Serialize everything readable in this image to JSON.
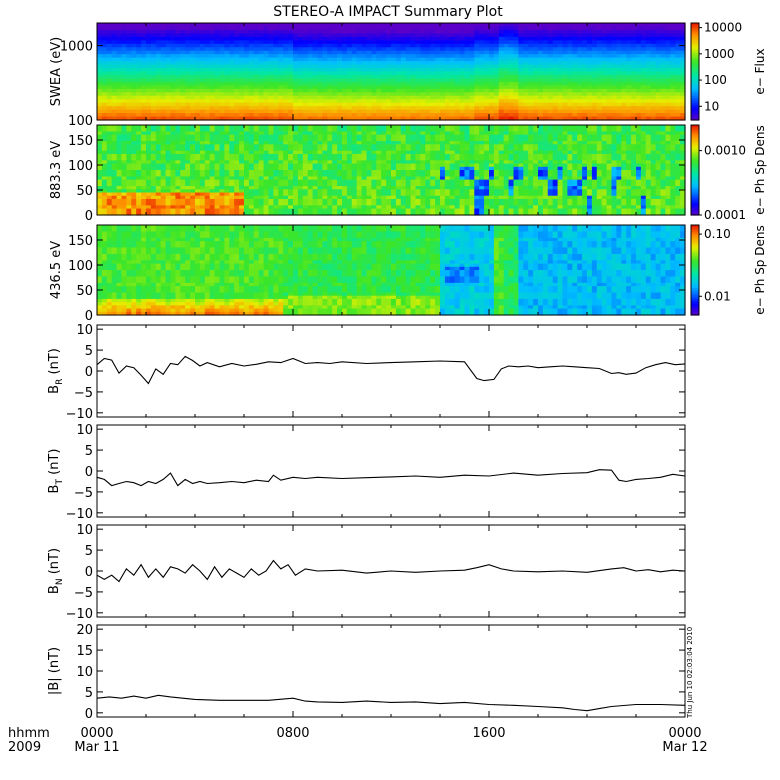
{
  "title": "STEREO-A IMPACT Summary Plot",
  "stamp": "Thu Jun 10 02:03:04 2010",
  "time_axis": {
    "unit_label": "hhmm",
    "year_label": "2009",
    "ticks": [
      {
        "t": 0,
        "top": "0000",
        "bottom": "Mar 11"
      },
      {
        "t": 8,
        "top": "0800",
        "bottom": ""
      },
      {
        "t": 16,
        "top": "1600",
        "bottom": ""
      },
      {
        "t": 24,
        "top": "0000",
        "bottom": "Mar 12"
      }
    ],
    "range_hours": [
      0,
      24
    ]
  },
  "chart_data": [
    {
      "type": "heatmap",
      "id": "swea",
      "ylabel": "SWEA (eV)",
      "yscale": "log",
      "ylim": [
        100,
        2000
      ],
      "yticks": [
        {
          "v": 100,
          "label": "100"
        },
        {
          "v": 1000,
          "label": "1000"
        }
      ],
      "colorbar": {
        "label": "e− Flux",
        "scale": "log",
        "range": [
          3,
          15000
        ],
        "ticks": [
          {
            "v": 10000,
            "label": "10000"
          },
          {
            "v": 1000,
            "label": "1000"
          },
          {
            "v": 100,
            "label": "100"
          },
          {
            "v": 10,
            "label": "10"
          }
        ]
      },
      "description_values": {
        "flux_at_100eV": 8000,
        "flux_at_300eV": 2000,
        "flux_at_1000eV": 100,
        "flux_at_2000eV": 5
      }
    },
    {
      "type": "heatmap",
      "id": "pad883",
      "ylabel": "883.3 eV",
      "ylim": [
        0,
        180
      ],
      "yticks": [
        {
          "v": 0,
          "label": "0"
        },
        {
          "v": 50,
          "label": "50"
        },
        {
          "v": 100,
          "label": "100"
        },
        {
          "v": 150,
          "label": "150"
        }
      ],
      "colorbar": {
        "label": "e− Ph Sp Dens",
        "scale": "log",
        "range": [
          0.0001,
          0.0025
        ],
        "ticks": [
          {
            "v": 0.001,
            "label": "0.0010"
          },
          {
            "v": 0.0001,
            "label": "0.0001"
          }
        ]
      }
    },
    {
      "type": "heatmap",
      "id": "pad436",
      "ylabel": "436.5 eV",
      "ylim": [
        0,
        180
      ],
      "yticks": [
        {
          "v": 0,
          "label": "0"
        },
        {
          "v": 50,
          "label": "50"
        },
        {
          "v": 100,
          "label": "100"
        },
        {
          "v": 150,
          "label": "150"
        }
      ],
      "colorbar": {
        "label": "e− Ph Sp Dens",
        "scale": "log",
        "range": [
          0.005,
          0.14
        ],
        "ticks": [
          {
            "v": 0.1,
            "label": "0.10"
          },
          {
            "v": 0.01,
            "label": "0.01"
          }
        ]
      }
    },
    {
      "type": "line",
      "id": "br",
      "ylabel_main": "B",
      "ylabel_sub": "R",
      "ylabel_unit": " (nT)",
      "ylim": [
        -11,
        11
      ],
      "yticks": [
        {
          "v": 10,
          "label": "10"
        },
        {
          "v": 5,
          "label": "5"
        },
        {
          "v": 0,
          "label": "0"
        },
        {
          "v": -5,
          "label": "−5"
        },
        {
          "v": -10,
          "label": "−10"
        }
      ],
      "x": [
        0,
        0.3,
        0.6,
        0.9,
        1.2,
        1.5,
        1.8,
        2.1,
        2.4,
        2.7,
        3.0,
        3.3,
        3.6,
        3.9,
        4.2,
        4.5,
        5,
        5.5,
        6,
        6.5,
        7,
        7.5,
        8,
        8.5,
        9,
        9.5,
        10,
        11,
        12,
        13,
        14,
        15,
        15.5,
        15.8,
        16.2,
        16.5,
        16.8,
        17.2,
        17.6,
        18,
        18.5,
        19,
        19.5,
        20,
        20.5,
        21,
        21.3,
        21.6,
        22,
        22.4,
        22.8,
        23.2,
        23.6,
        24
      ],
      "y": [
        1.5,
        3.0,
        2.6,
        -0.5,
        1.2,
        0.8,
        -1.0,
        -3.0,
        0.5,
        -0.8,
        1.8,
        1.5,
        3.5,
        2.5,
        1.2,
        2.0,
        1.0,
        1.8,
        1.2,
        1.6,
        2.2,
        2.0,
        3.0,
        1.8,
        2.0,
        1.8,
        2.2,
        1.8,
        2.0,
        2.2,
        2.4,
        2.2,
        -1.8,
        -2.3,
        -2.0,
        0.5,
        1.2,
        1.0,
        1.2,
        0.8,
        1.0,
        1.2,
        1.0,
        0.8,
        0.6,
        -0.6,
        -0.4,
        -0.8,
        -0.5,
        0.8,
        1.5,
        2.0,
        1.5,
        1.7
      ]
    },
    {
      "type": "line",
      "id": "bt",
      "ylabel_main": "B",
      "ylabel_sub": "T",
      "ylabel_unit": " (nT)",
      "ylim": [
        -11,
        11
      ],
      "yticks": [
        {
          "v": 10,
          "label": "10"
        },
        {
          "v": 5,
          "label": "5"
        },
        {
          "v": 0,
          "label": "0"
        },
        {
          "v": -5,
          "label": "−5"
        },
        {
          "v": -10,
          "label": "−10"
        }
      ],
      "x": [
        0,
        0.3,
        0.6,
        0.9,
        1.2,
        1.5,
        1.8,
        2.1,
        2.4,
        2.7,
        3.0,
        3.3,
        3.6,
        3.9,
        4.2,
        4.5,
        5,
        5.5,
        6,
        6.5,
        7,
        7.2,
        7.5,
        8,
        8.5,
        9,
        10,
        11,
        12,
        13,
        14,
        15,
        16,
        17,
        18,
        19,
        20,
        20.5,
        21,
        21.3,
        21.6,
        22,
        22.5,
        23,
        23.5,
        24
      ],
      "y": [
        -1.5,
        -2.0,
        -3.5,
        -3.0,
        -2.5,
        -2.8,
        -3.5,
        -2.5,
        -3.0,
        -2.0,
        -0.5,
        -3.5,
        -2.0,
        -3.0,
        -2.5,
        -3.0,
        -2.8,
        -2.5,
        -2.8,
        -2.2,
        -2.5,
        -1.0,
        -2.2,
        -1.5,
        -1.8,
        -1.5,
        -1.8,
        -1.6,
        -1.4,
        -1.2,
        -1.5,
        -1.0,
        -1.2,
        -0.5,
        -1.0,
        -0.6,
        -0.4,
        0.3,
        0.2,
        -2.2,
        -2.5,
        -2.0,
        -1.8,
        -1.5,
        -0.8,
        -1.2
      ]
    },
    {
      "type": "line",
      "id": "bn",
      "ylabel_main": "B",
      "ylabel_sub": "N",
      "ylabel_unit": " (nT)",
      "ylim": [
        -11,
        11
      ],
      "yticks": [
        {
          "v": 10,
          "label": "10"
        },
        {
          "v": 5,
          "label": "5"
        },
        {
          "v": 0,
          "label": "0"
        },
        {
          "v": -5,
          "label": "−5"
        },
        {
          "v": -10,
          "label": "−10"
        }
      ],
      "x": [
        0,
        0.3,
        0.6,
        0.9,
        1.2,
        1.5,
        1.8,
        2.1,
        2.4,
        2.7,
        3.0,
        3.3,
        3.6,
        3.9,
        4.2,
        4.5,
        4.8,
        5.1,
        5.4,
        5.7,
        6,
        6.3,
        6.6,
        6.9,
        7.2,
        7.5,
        7.8,
        8.1,
        8.5,
        9,
        10,
        11,
        12,
        13,
        14,
        15,
        15.5,
        16,
        16.5,
        17,
        18,
        19,
        20,
        21,
        21.5,
        22,
        22.5,
        23,
        23.5,
        24
      ],
      "y": [
        -1.0,
        -2.0,
        -1.0,
        -2.5,
        0.5,
        -1.0,
        1.5,
        -1.5,
        0.5,
        -1.5,
        1.0,
        0.5,
        -0.5,
        1.5,
        0.0,
        -2.0,
        1.0,
        -1.5,
        0.5,
        -0.5,
        -1.5,
        0.5,
        -1.0,
        0.0,
        2.5,
        0.5,
        1.5,
        -1.0,
        0.5,
        0.0,
        0.2,
        -0.5,
        0.0,
        -0.3,
        0.0,
        0.2,
        0.8,
        1.5,
        0.5,
        0.0,
        -0.2,
        0.0,
        -0.3,
        0.5,
        0.8,
        0.0,
        0.3,
        -0.2,
        0.2,
        0.0
      ]
    },
    {
      "type": "line",
      "id": "bmag",
      "ylabel_main": "|B| (nT)",
      "ylim": [
        -1,
        21
      ],
      "yticks": [
        {
          "v": 20,
          "label": "20"
        },
        {
          "v": 15,
          "label": "15"
        },
        {
          "v": 10,
          "label": "10"
        },
        {
          "v": 5,
          "label": "5"
        },
        {
          "v": 0,
          "label": "0"
        }
      ],
      "x": [
        0,
        0.5,
        1,
        1.5,
        2,
        2.5,
        3,
        3.5,
        4,
        5,
        6,
        7,
        8,
        8.5,
        9,
        10,
        11,
        12,
        13,
        14,
        15,
        16,
        17,
        18,
        19,
        19.5,
        20,
        20.5,
        21,
        22,
        23,
        24
      ],
      "y": [
        3.5,
        3.8,
        3.5,
        4.0,
        3.5,
        4.2,
        3.8,
        3.5,
        3.2,
        3.0,
        3.0,
        3.0,
        3.5,
        2.8,
        2.6,
        2.5,
        2.8,
        2.5,
        2.6,
        2.2,
        2.5,
        2.0,
        1.8,
        1.5,
        1.2,
        0.8,
        0.5,
        1.0,
        1.5,
        2.0,
        2.0,
        1.8
      ]
    }
  ]
}
